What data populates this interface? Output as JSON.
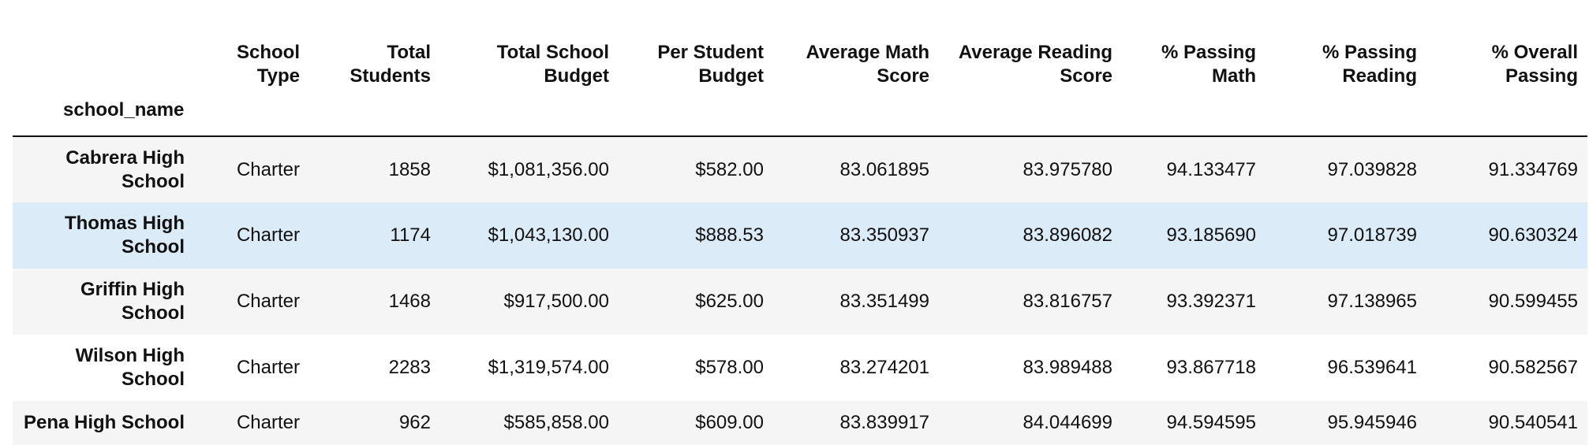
{
  "table": {
    "index_name": "school_name",
    "columns": [
      "School Type",
      "Total Students",
      "Total School Budget",
      "Per Student Budget",
      "Average Math Score",
      "Average Reading Score",
      "% Passing Math",
      "% Passing Reading",
      "% Overall Passing"
    ],
    "rows": [
      {
        "school_name": "Cabrera High School",
        "cells": [
          "Charter",
          "1858",
          "$1,081,356.00",
          "$582.00",
          "83.061895",
          "83.975780",
          "94.133477",
          "97.039828",
          "91.334769"
        ]
      },
      {
        "school_name": "Thomas High School",
        "cells": [
          "Charter",
          "1174",
          "$1,043,130.00",
          "$888.53",
          "83.350937",
          "83.896082",
          "93.185690",
          "97.018739",
          "90.630324"
        ]
      },
      {
        "school_name": "Griffin High School",
        "cells": [
          "Charter",
          "1468",
          "$917,500.00",
          "$625.00",
          "83.351499",
          "83.816757",
          "93.392371",
          "97.138965",
          "90.599455"
        ]
      },
      {
        "school_name": "Wilson High School",
        "cells": [
          "Charter",
          "2283",
          "$1,319,574.00",
          "$578.00",
          "83.274201",
          "83.989488",
          "93.867718",
          "96.539641",
          "90.582567"
        ]
      },
      {
        "school_name": "Pena High School",
        "cells": [
          "Charter",
          "962",
          "$585,858.00",
          "$609.00",
          "83.839917",
          "84.044699",
          "94.594595",
          "95.945946",
          "90.540541"
        ]
      }
    ]
  },
  "colors": {
    "stripe": "#f5f5f5",
    "hover_row": "#dcebf8",
    "rule": "#111111"
  }
}
